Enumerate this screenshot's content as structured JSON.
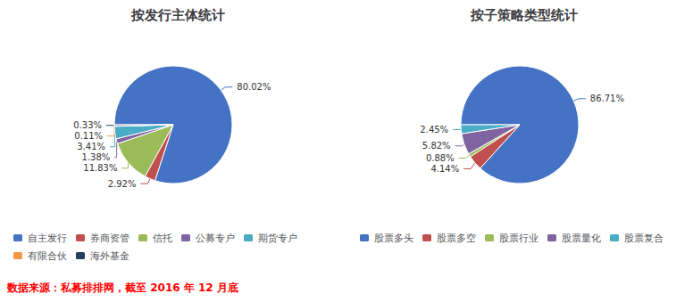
{
  "chart_data": [
    {
      "type": "pie",
      "title": "按发行主体统计",
      "categories": [
        "自主发行",
        "券商资管",
        "信托",
        "公募专户",
        "期货专户",
        "有限合伙",
        "海外基金"
      ],
      "values": [
        80.02,
        2.92,
        11.83,
        1.38,
        3.41,
        0.11,
        0.33
      ],
      "value_labels": [
        "80.02%",
        "2.92%",
        "11.83%",
        "1.38%",
        "3.41%",
        "0.11%",
        "0.33%"
      ],
      "colors": [
        "#4472C4",
        "#C0504D",
        "#9BBB59",
        "#8064A2",
        "#4BACC6",
        "#F79646",
        "#243F60"
      ],
      "data_labels": true,
      "legend": "bottom",
      "annotations": [
        {
          "text": "数据来源：私募排排网，截至 2016 年 12 月底",
          "color": "#FF0000"
        }
      ]
    },
    {
      "type": "pie",
      "title": "按子策略类型统计",
      "categories": [
        "股票多头",
        "股票多空",
        "股票行业",
        "股票量化",
        "股票复合"
      ],
      "values": [
        86.71,
        4.14,
        0.88,
        5.82,
        2.45
      ],
      "value_labels": [
        "86.71%",
        "4.14%",
        "0.88%",
        "5.82%",
        "2.45%"
      ],
      "colors": [
        "#4472C4",
        "#C0504D",
        "#9BBB59",
        "#8064A2",
        "#4BACC6"
      ],
      "data_labels": true,
      "legend": "bottom"
    }
  ]
}
